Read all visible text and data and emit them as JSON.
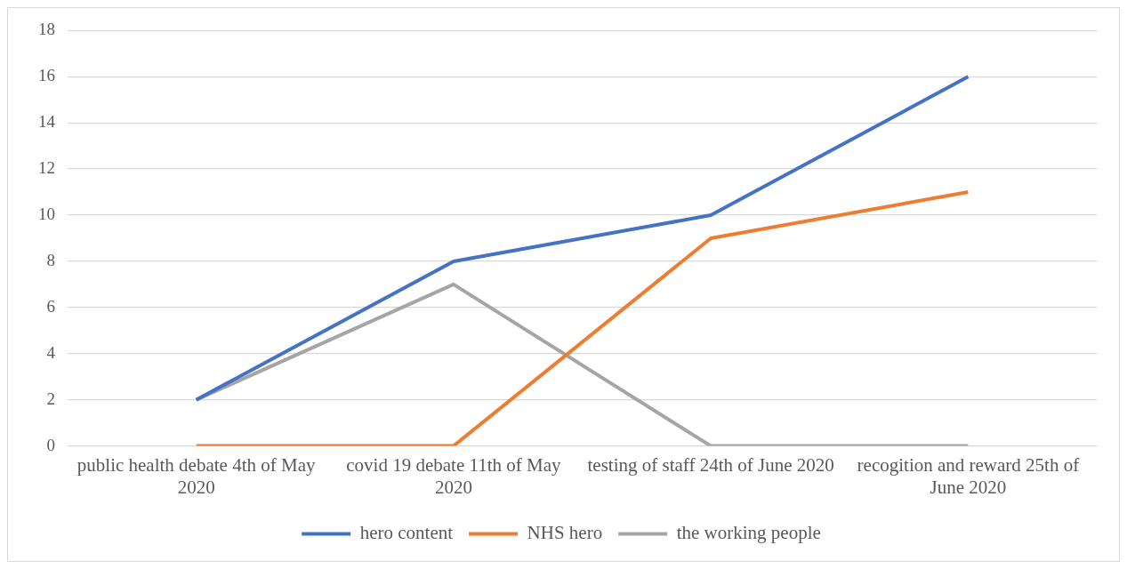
{
  "chart_data": {
    "type": "line",
    "categories": [
      "public health debate 4th of May 2020",
      "covid 19 debate 11th of May 2020",
      "testing of staff 24th of June 2020",
      "recogition and reward 25th of June 2020"
    ],
    "series": [
      {
        "name": "hero content",
        "color": "#4472c4",
        "values": [
          2,
          8,
          10,
          16
        ]
      },
      {
        "name": "NHS hero",
        "color": "#ed7d31",
        "values": [
          0,
          0,
          9,
          11
        ]
      },
      {
        "name": "the working people",
        "color": "#a5a5a5",
        "values": [
          2,
          7,
          0,
          0
        ]
      }
    ],
    "ylim": [
      0,
      18
    ],
    "yticks": [
      0,
      2,
      4,
      6,
      8,
      10,
      12,
      14,
      16,
      18
    ],
    "grid": "y",
    "legend": "bottom"
  }
}
